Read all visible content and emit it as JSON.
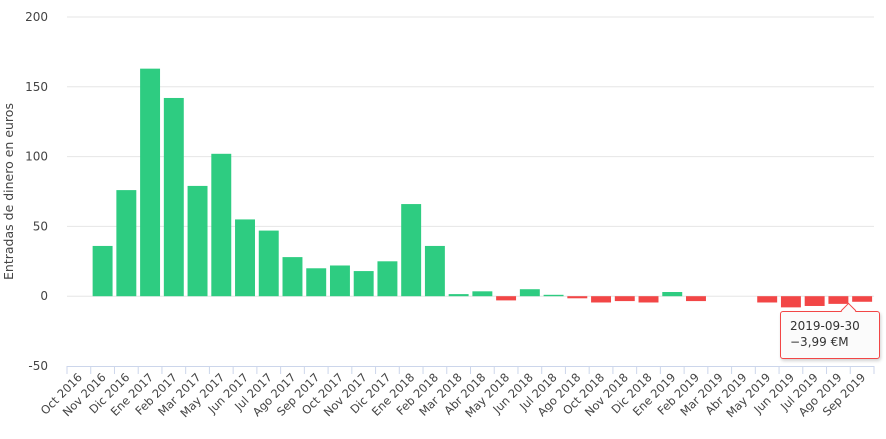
{
  "chart_data": {
    "type": "bar",
    "title": "",
    "xlabel": "",
    "ylabel": "Entradas de dinero en euros",
    "ylim": [
      -50,
      200
    ],
    "yticks": [
      -50,
      0,
      50,
      100,
      150,
      200
    ],
    "grid": true,
    "legend": "none",
    "colors": {
      "positive": "#2ecc81",
      "negative": "#f24646",
      "grid": "#e6e6e6",
      "axis": "#ccd6eb"
    },
    "categories": [
      "Oct 2016",
      "Nov 2016",
      "Dic 2016",
      "Ene 2017",
      "Feb 2017",
      "Mar 2017",
      "May 2017",
      "Jun 2017",
      "Jul 2017",
      "Ago 2017",
      "Sep 2017",
      "Oct 2017",
      "Nov 2017",
      "Dic 2017",
      "Ene 2018",
      "Feb 2018",
      "Mar 2018",
      "Abr 2018",
      "May 2018",
      "Jun 2018",
      "Jul 2018",
      "Ago 2018",
      "Oct 2018",
      "Nov 2018",
      "Dic 2018",
      "Ene 2019",
      "Feb 2019",
      "Mar 2019",
      "Abr 2019",
      "May 2019",
      "Jun 2019",
      "Jul 2019",
      "Ago 2019",
      "Sep 2019"
    ],
    "values": [
      0,
      36,
      76,
      163,
      142,
      79,
      102,
      55,
      47,
      28,
      20,
      22,
      18,
      25,
      66,
      36,
      1.5,
      3.5,
      -3,
      5,
      1,
      -1.5,
      -4.5,
      -3.5,
      -4.5,
      3,
      -3.5,
      0,
      0,
      -4.5,
      -8,
      -7,
      -5.5,
      -3.99
    ]
  },
  "tooltip": {
    "date": "2019-09-30",
    "value": "−3,99 €M"
  }
}
